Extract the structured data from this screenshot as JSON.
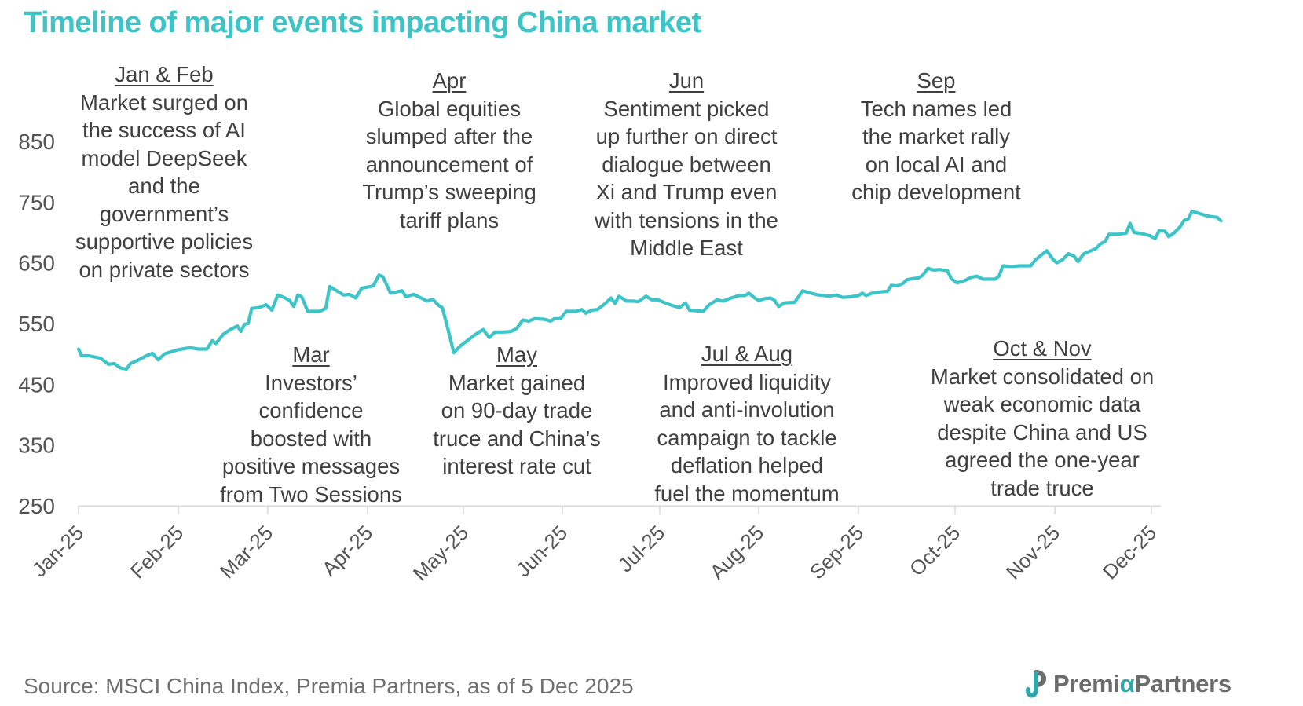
{
  "title": "Timeline of major events impacting China market",
  "source": "Source: MSCI China Index, Premia Partners, as of 5 Dec 2025",
  "logo": {
    "icon": "premia-logo-icon",
    "word_pre": "Premi",
    "word_alpha": "α",
    "word_post": "Partners",
    "colors": {
      "teal": "#2fa8a9",
      "grey": "#6c6c6c"
    }
  },
  "colors": {
    "line": "#3cc4c8",
    "title": "#3cc4c8",
    "axis": "#d9d9d9",
    "text": "#404040",
    "tick": "#555555"
  },
  "annotations": [
    {
      "id": "jan-feb",
      "heading": "Jan & Feb",
      "lines": [
        "Market surged on",
        "the success of AI",
        "model DeepSeek",
        "and the",
        "government’s",
        "supportive policies",
        "on private sectors"
      ]
    },
    {
      "id": "mar",
      "heading": "Mar",
      "lines": [
        "Investors’",
        "confidence",
        "boosted with",
        "positive messages",
        "from Two Sessions"
      ]
    },
    {
      "id": "apr",
      "heading": "Apr",
      "lines": [
        "Global equities",
        "slumped after the",
        "announcement of",
        "Trump’s sweeping",
        "tariff plans"
      ]
    },
    {
      "id": "may",
      "heading": "May",
      "lines": [
        "Market gained",
        "on 90-day trade",
        "truce and China’s",
        "interest rate cut"
      ]
    },
    {
      "id": "jun",
      "heading": "Jun",
      "lines": [
        "Sentiment picked",
        "up further on direct",
        "dialogue between",
        "Xi and Trump even",
        "with tensions in the",
        "Middle East"
      ]
    },
    {
      "id": "jul-aug",
      "heading": "Jul & Aug",
      "lines": [
        "Improved liquidity",
        "and anti-involution",
        "campaign to tackle",
        "deflation helped",
        "fuel the momentum"
      ]
    },
    {
      "id": "sep",
      "heading": "Sep",
      "lines": [
        "Tech names led",
        "the market rally",
        "on local AI and",
        "chip development"
      ]
    },
    {
      "id": "oct-nov",
      "heading": "Oct & Nov",
      "lines": [
        "Market consolidated on",
        "weak economic data",
        "despite China and US",
        "agreed the one-year",
        "trade truce"
      ]
    }
  ],
  "chart_data": {
    "type": "line",
    "title": "Timeline of major events impacting China market",
    "xlabel": "",
    "ylabel": "",
    "ylim": [
      250,
      850
    ],
    "yticks": [
      250,
      350,
      450,
      550,
      650,
      750,
      850
    ],
    "xticks": [
      "Jan-25",
      "Feb-25",
      "Mar-25",
      "Apr-25",
      "May-25",
      "Jun-25",
      "Jul-25",
      "Aug-25",
      "Sep-25",
      "Oct-25",
      "Nov-25",
      "Dec-25"
    ],
    "xrange_months": [
      0,
      11.15
    ],
    "grid": false,
    "legend": "none",
    "series": [
      {
        "name": "MSCI China Index",
        "points": [
          [
            0.0,
            508
          ],
          [
            0.03,
            497
          ],
          [
            0.1,
            497
          ],
          [
            0.16,
            495
          ],
          [
            0.22,
            493
          ],
          [
            0.3,
            483
          ],
          [
            0.36,
            484
          ],
          [
            0.42,
            477
          ],
          [
            0.48,
            475
          ],
          [
            0.52,
            484
          ],
          [
            0.6,
            490
          ],
          [
            0.68,
            497
          ],
          [
            0.74,
            501
          ],
          [
            0.8,
            490
          ],
          [
            0.86,
            500
          ],
          [
            0.92,
            503
          ],
          [
            1.0,
            507
          ],
          [
            1.08,
            509
          ],
          [
            1.14,
            510
          ],
          [
            1.22,
            508
          ],
          [
            1.32,
            508
          ],
          [
            1.38,
            522
          ],
          [
            1.42,
            517
          ],
          [
            1.5,
            532
          ],
          [
            1.58,
            540
          ],
          [
            1.66,
            546
          ],
          [
            1.7,
            537
          ],
          [
            1.74,
            549
          ],
          [
            1.78,
            550
          ],
          [
            1.82,
            575
          ],
          [
            1.9,
            576
          ],
          [
            1.98,
            581
          ],
          [
            2.04,
            572
          ],
          [
            2.1,
            597
          ],
          [
            2.16,
            593
          ],
          [
            2.22,
            588
          ],
          [
            2.26,
            578
          ],
          [
            2.3,
            597
          ],
          [
            2.34,
            594
          ],
          [
            2.4,
            570
          ],
          [
            2.46,
            570
          ],
          [
            2.52,
            570
          ],
          [
            2.58,
            575
          ],
          [
            2.62,
            611
          ],
          [
            2.68,
            605
          ],
          [
            2.76,
            597
          ],
          [
            2.82,
            598
          ],
          [
            2.88,
            592
          ],
          [
            2.94,
            608
          ],
          [
            3.0,
            610
          ],
          [
            3.06,
            612
          ],
          [
            3.12,
            630
          ],
          [
            3.16,
            627
          ],
          [
            3.24,
            600
          ],
          [
            3.3,
            602
          ],
          [
            3.36,
            604
          ],
          [
            3.4,
            594
          ],
          [
            3.48,
            598
          ],
          [
            3.56,
            592
          ],
          [
            3.62,
            587
          ],
          [
            3.68,
            590
          ],
          [
            3.74,
            580
          ],
          [
            3.78,
            576
          ],
          [
            3.84,
            540
          ],
          [
            3.9,
            502
          ],
          [
            3.96,
            512
          ],
          [
            4.04,
            522
          ],
          [
            4.12,
            532
          ],
          [
            4.2,
            540
          ],
          [
            4.26,
            527
          ],
          [
            4.32,
            536
          ],
          [
            4.4,
            536
          ],
          [
            4.48,
            537
          ],
          [
            4.54,
            542
          ],
          [
            4.6,
            556
          ],
          [
            4.66,
            554
          ],
          [
            4.72,
            558
          ],
          [
            4.82,
            557
          ],
          [
            4.88,
            554
          ],
          [
            4.92,
            558
          ],
          [
            4.98,
            558
          ],
          [
            5.04,
            570
          ],
          [
            5.14,
            570
          ],
          [
            5.2,
            573
          ],
          [
            5.24,
            567
          ],
          [
            5.3,
            572
          ],
          [
            5.36,
            573
          ],
          [
            5.44,
            583
          ],
          [
            5.5,
            592
          ],
          [
            5.54,
            583
          ],
          [
            5.58,
            595
          ],
          [
            5.66,
            587
          ],
          [
            5.72,
            587
          ],
          [
            5.78,
            586
          ],
          [
            5.86,
            595
          ],
          [
            5.92,
            589
          ],
          [
            5.98,
            589
          ],
          [
            6.04,
            585
          ],
          [
            6.12,
            580
          ],
          [
            6.2,
            576
          ],
          [
            6.26,
            584
          ],
          [
            6.3,
            572
          ],
          [
            6.38,
            571
          ],
          [
            6.44,
            570
          ],
          [
            6.5,
            581
          ],
          [
            6.58,
            589
          ],
          [
            6.64,
            587
          ],
          [
            6.72,
            592
          ],
          [
            6.8,
            596
          ],
          [
            6.86,
            596
          ],
          [
            6.9,
            600
          ],
          [
            6.96,
            592
          ],
          [
            7.0,
            588
          ],
          [
            7.06,
            591
          ],
          [
            7.12,
            592
          ],
          [
            7.16,
            588
          ],
          [
            7.2,
            578
          ],
          [
            7.26,
            584
          ],
          [
            7.36,
            585
          ],
          [
            7.44,
            604
          ],
          [
            7.52,
            600
          ],
          [
            7.6,
            597
          ],
          [
            7.66,
            596
          ],
          [
            7.7,
            595
          ],
          [
            7.78,
            597
          ],
          [
            7.84,
            593
          ],
          [
            7.92,
            594
          ],
          [
            8.0,
            596
          ],
          [
            8.04,
            600
          ],
          [
            8.08,
            596
          ],
          [
            8.14,
            600
          ],
          [
            8.22,
            602
          ],
          [
            8.3,
            603
          ],
          [
            8.34,
            613
          ],
          [
            8.4,
            612
          ],
          [
            8.46,
            616
          ],
          [
            8.5,
            622
          ],
          [
            8.56,
            624
          ],
          [
            8.62,
            625
          ],
          [
            8.66,
            629
          ],
          [
            8.72,
            641
          ],
          [
            8.78,
            638
          ],
          [
            8.84,
            639
          ],
          [
            8.92,
            637
          ],
          [
            8.96,
            624
          ],
          [
            9.02,
            617
          ],
          [
            9.1,
            621
          ],
          [
            9.16,
            626
          ],
          [
            9.22,
            628
          ],
          [
            9.28,
            623
          ],
          [
            9.34,
            623
          ],
          [
            9.4,
            623
          ],
          [
            9.44,
            628
          ],
          [
            9.48,
            645
          ],
          [
            9.56,
            644
          ],
          [
            9.66,
            645
          ],
          [
            9.76,
            645
          ],
          [
            9.8,
            654
          ],
          [
            9.88,
            665
          ],
          [
            9.92,
            670
          ],
          [
            9.98,
            656
          ],
          [
            10.02,
            650
          ],
          [
            10.08,
            655
          ],
          [
            10.14,
            665
          ],
          [
            10.2,
            661
          ],
          [
            10.24,
            652
          ],
          [
            10.3,
            665
          ],
          [
            10.36,
            669
          ],
          [
            10.42,
            673
          ],
          [
            10.48,
            682
          ],
          [
            10.52,
            685
          ],
          [
            10.56,
            697
          ],
          [
            10.66,
            697
          ],
          [
            10.74,
            699
          ],
          [
            10.78,
            715
          ],
          [
            10.82,
            700
          ],
          [
            10.9,
            698
          ],
          [
            10.98,
            695
          ],
          [
            11.04,
            690
          ],
          [
            11.08,
            703
          ],
          [
            11.14,
            702
          ],
          [
            11.18,
            693
          ],
          [
            11.24,
            700
          ],
          [
            11.3,
            710
          ],
          [
            11.34,
            720
          ],
          [
            11.38,
            722
          ],
          [
            11.42,
            735
          ],
          [
            11.48,
            732
          ],
          [
            11.56,
            728
          ],
          [
            11.62,
            726
          ],
          [
            11.68,
            725
          ],
          [
            11.72,
            719
          ]
        ]
      }
    ]
  }
}
